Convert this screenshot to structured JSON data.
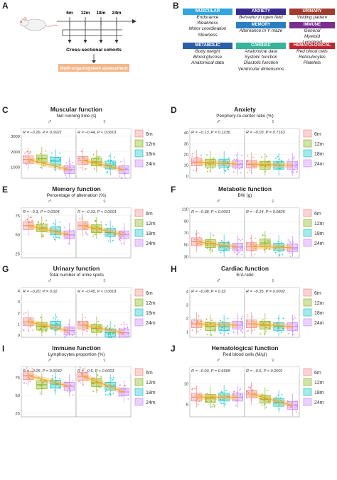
{
  "panelA": {
    "label": "A",
    "timepoints": [
      "6m",
      "12m",
      "18m",
      "24m"
    ],
    "cohorts_text": "Cross-sectional cohorts",
    "assessment_text": "Multi-organ/system assessment"
  },
  "panelB": {
    "label": "B",
    "categories": [
      {
        "name": "Muscular",
        "color": "#2ea6df",
        "items": [
          "Endurance",
          "Weakness",
          "Motor coordination",
          "Slowness"
        ]
      },
      {
        "name": "Metabolic",
        "color": "#2b5ea8",
        "items": [
          "Body weight",
          "Blood glucose",
          "Anatomical data"
        ]
      },
      {
        "name": "Anxiety",
        "color": "#3b2a8e",
        "items": [
          "Behavior in open field"
        ]
      },
      {
        "name": "Memory",
        "color": "#2b7fc0",
        "items": [
          "Alternance in Y maze"
        ]
      },
      {
        "name": "Cardiac",
        "color": "#38b49b",
        "items": [
          "Anatomical data",
          "Systolic function",
          "Diastolic function",
          "Ventricular dimensions"
        ]
      },
      {
        "name": "Urinary",
        "color": "#a23b2f",
        "items": [
          "Voiding pattern"
        ]
      },
      {
        "name": "Immune",
        "color": "#7a2e8e",
        "items": [
          "General",
          "Myeloid",
          "Lymphoid"
        ]
      },
      {
        "name": "Hematological",
        "color": "#c0262e",
        "items": [
          "Red blood cells",
          "Reticulocytes",
          "Platelets"
        ]
      }
    ]
  },
  "legend": [
    "6m",
    "12m",
    "18m",
    "24m"
  ],
  "colors": {
    "6m": "#f08080",
    "12m": "#7cae00",
    "18m": "#00bfc4",
    "24m": "#c77cff",
    "trend": "#f5a623"
  },
  "sex_symbols": {
    "male": "♂",
    "female": "♀"
  },
  "panels": [
    {
      "label": "C",
      "title": "Muscular function",
      "subtitle": "Net running time (s)",
      "male_stat": "R = −0.26, P = 0.0021",
      "female_stat": "R = −0.44, P < 0.0001",
      "yticks": [
        1000,
        2000,
        3000
      ],
      "ylim": [
        300,
        3500
      ],
      "medians": {
        "male": [
          1500,
          1550,
          1400,
          850
        ],
        "female": [
          1450,
          1350,
          1150,
          850
        ]
      }
    },
    {
      "label": "D",
      "title": "Anxiety",
      "subtitle": "Periphery-to-center ratio (%)",
      "male_stat": "R = −0.13, P = 0.1236",
      "female_stat": "R = −0.03, P = 0.7163",
      "yticks": [
        0,
        10,
        20,
        30,
        40
      ],
      "ylim": [
        -2,
        44
      ],
      "medians": {
        "male": [
          13,
          12,
          12,
          11
        ],
        "female": [
          11,
          10,
          10,
          10
        ]
      }
    },
    {
      "label": "E",
      "title": "Memory function",
      "subtitle": "Percentage of alternation (%)",
      "male_stat": "R = −0.3, P = 0.0004",
      "female_stat": "R = −0.33, P < 0.0001",
      "yticks": [
        25,
        50,
        75
      ],
      "ylim": [
        20,
        85
      ],
      "medians": {
        "male": [
          62,
          59,
          55,
          50
        ],
        "female": [
          62,
          58,
          53,
          50
        ]
      }
    },
    {
      "label": "F",
      "title": "Metabolic function",
      "subtitle": "BW (g)",
      "male_stat": "R = −0.38, P < 0.0001",
      "female_stat": "R = −0.14, P = 0.0825",
      "yticks": [
        30,
        50,
        70,
        90,
        110
      ],
      "ylim": [
        28,
        112
      ],
      "medians": {
        "male": [
          55,
          52,
          47,
          46
        ],
        "female": [
          47,
          53,
          46,
          45
        ]
      }
    },
    {
      "label": "G",
      "title": "Urinary function",
      "subtitle": "Total number of urine spots",
      "male_stat": "R = −0.20, P = 0.02",
      "female_stat": "R = −0.45, P < 0.0001",
      "yticks": [
        0,
        1,
        2,
        3,
        4
      ],
      "ylim": [
        -0.2,
        4.3
      ],
      "medians": {
        "male": [
          1.2,
          0.8,
          0.9,
          0.4
        ],
        "female": [
          0.9,
          0.6,
          0.2,
          0.2
        ]
      }
    },
    {
      "label": "H",
      "title": "Cardiac function",
      "subtitle": "E/A ratio",
      "male_stat": "R = −0.08, P = 0.32",
      "female_stat": "R = −0.35, P = 0.0002",
      "yticks": [
        1,
        2,
        3,
        4
      ],
      "ylim": [
        0.6,
        4.3
      ],
      "medians": {
        "male": [
          1.6,
          1.4,
          1.4,
          1.5
        ],
        "female": [
          1.6,
          1.5,
          1.4,
          1.4
        ]
      }
    },
    {
      "label": "I",
      "title": "Immune function",
      "subtitle": "Lymphocytes proportion (%)",
      "male_stat": "R = −0.25, P = 0.0032",
      "female_stat": "R = −0.5, P < 0.0001",
      "yticks": [
        25,
        50,
        75
      ],
      "ylim": [
        20,
        90
      ],
      "medians": {
        "male": [
          78,
          65,
          66,
          63
        ],
        "female": [
          77,
          68,
          63,
          55
        ]
      }
    },
    {
      "label": "J",
      "title": "Hematological function",
      "subtitle": "Red blood cells (M/µl)",
      "male_stat": "R = −0.03, P = 0.6968",
      "female_stat": "R = −0.6, P < 0.0001",
      "yticks": [
        8,
        10
      ],
      "ylim": [
        6.8,
        11.6
      ],
      "medians": {
        "male": [
          8.7,
          8.6,
          8.7,
          8.7
        ],
        "female": [
          9.0,
          8.5,
          8.2,
          7.9
        ]
      }
    }
  ]
}
